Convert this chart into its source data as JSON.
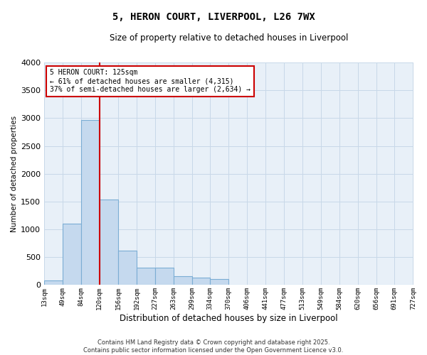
{
  "title": "5, HERON COURT, LIVERPOOL, L26 7WX",
  "subtitle": "Size of property relative to detached houses in Liverpool",
  "xlabel": "Distribution of detached houses by size in Liverpool",
  "ylabel": "Number of detached properties",
  "bar_color": "#c5d9ee",
  "bar_edge_color": "#7badd4",
  "grid_color": "#c8d8e8",
  "background_color": "#e8f0f8",
  "red_line_color": "#cc0000",
  "annotation_box_color": "#cc0000",
  "annotation_text": "5 HERON COURT: 125sqm\n← 61% of detached houses are smaller (4,315)\n37% of semi-detached houses are larger (2,634) →",
  "footer_text": "Contains HM Land Registry data © Crown copyright and database right 2025.\nContains public sector information licensed under the Open Government Licence v3.0.",
  "bin_edges": [
    13,
    49,
    84,
    120,
    156,
    192,
    227,
    263,
    299,
    334,
    370,
    406,
    441,
    477,
    513,
    549,
    584,
    620,
    656,
    691,
    727
  ],
  "bin_labels": [
    "13sqm",
    "49sqm",
    "84sqm",
    "120sqm",
    "156sqm",
    "192sqm",
    "227sqm",
    "263sqm",
    "299sqm",
    "334sqm",
    "370sqm",
    "406sqm",
    "441sqm",
    "477sqm",
    "513sqm",
    "549sqm",
    "584sqm",
    "620sqm",
    "656sqm",
    "691sqm",
    "727sqm"
  ],
  "counts": [
    80,
    1100,
    2970,
    1540,
    620,
    310,
    310,
    160,
    130,
    110,
    10,
    10,
    10,
    10,
    10,
    5,
    5,
    5,
    5,
    5
  ],
  "ylim": [
    0,
    4000
  ],
  "yticks": [
    0,
    500,
    1000,
    1500,
    2000,
    2500,
    3000,
    3500,
    4000
  ],
  "property_line_x": 120
}
